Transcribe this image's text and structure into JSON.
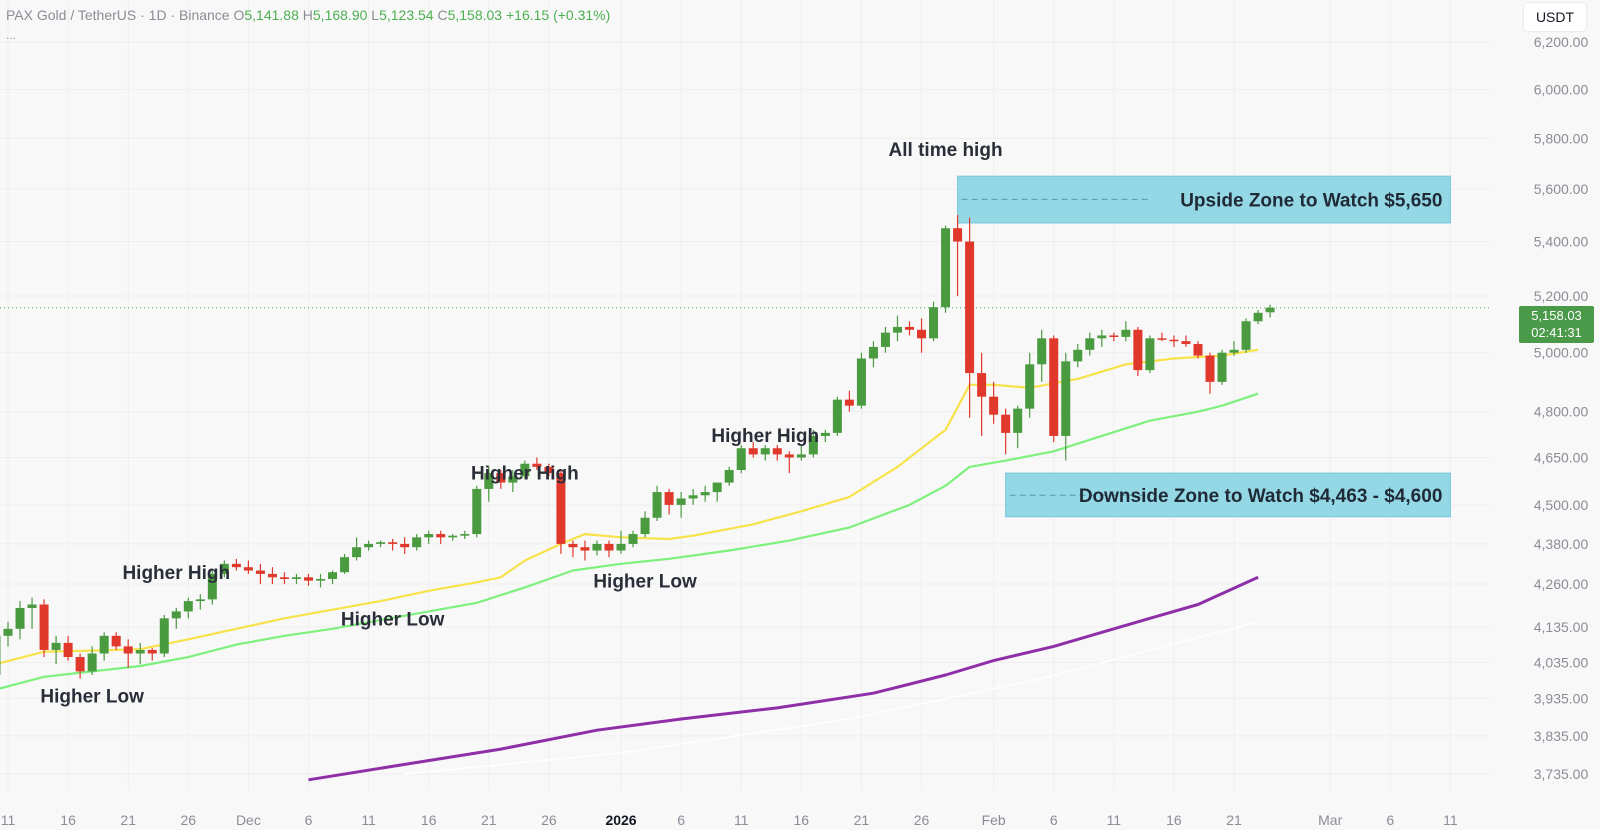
{
  "legend": {
    "symbol": "PAX Gold / TetherUS · 1D · Binance",
    "o_label": "O",
    "o_value": "5,141.88",
    "h_label": "H",
    "h_value": "5,168.90",
    "l_label": "L",
    "l_value": "5,123.54",
    "c_label": "C",
    "c_value": "5,158.03",
    "change": "+16.15 (+0.31%)",
    "more": "..."
  },
  "currency_button": "USDT",
  "last_price": {
    "price": "5,158.03",
    "countdown": "02:41:31"
  },
  "colors": {
    "up": "#4a9a3f",
    "down": "#e0382b",
    "ema_fast": "#f7e24a",
    "ema_mid": "#7ef07e",
    "ema_slow": "#8e2fa8",
    "zone_fill": "#8fd7e6",
    "zone_border": "#6cc4d6",
    "grid": "#eeeeee",
    "price_line": "#4caf50"
  },
  "chart_data": {
    "type": "candlestick",
    "y_scale": "log",
    "y_range": [
      3700,
      6300
    ],
    "x_range": [
      "2025-11-11",
      "2026-03-13"
    ],
    "y_ticks": [
      6200,
      6000,
      5800,
      5600,
      5400,
      5200,
      5000,
      4800,
      4650,
      4500,
      4380,
      4260,
      4135,
      4035,
      3935,
      3835,
      3735
    ],
    "y_tick_labels": [
      "6,200.00",
      "6,000.00",
      "5,800.00",
      "5,600.00",
      "5,400.00",
      "5,200.00",
      "5,000.00",
      "4,800.00",
      "4,650.00",
      "4,500.00",
      "4,380.00",
      "4,260.00",
      "4,135.00",
      "4,035.00",
      "3,935.00",
      "3,835.00",
      "3,735.00"
    ],
    "x_ticks": [
      {
        "date": "2025-11-11",
        "label": "11"
      },
      {
        "date": "2025-11-16",
        "label": "16"
      },
      {
        "date": "2025-11-21",
        "label": "21"
      },
      {
        "date": "2025-11-26",
        "label": "26"
      },
      {
        "date": "2025-12-01",
        "label": "Dec"
      },
      {
        "date": "2025-12-06",
        "label": "6"
      },
      {
        "date": "2025-12-11",
        "label": "11"
      },
      {
        "date": "2025-12-16",
        "label": "16"
      },
      {
        "date": "2025-12-21",
        "label": "21"
      },
      {
        "date": "2025-12-26",
        "label": "26"
      },
      {
        "date": "2026-01-01",
        "label": "2026",
        "bold": true
      },
      {
        "date": "2026-01-06",
        "label": "6"
      },
      {
        "date": "2026-01-11",
        "label": "11"
      },
      {
        "date": "2026-01-16",
        "label": "16"
      },
      {
        "date": "2026-01-21",
        "label": "21"
      },
      {
        "date": "2026-01-26",
        "label": "26"
      },
      {
        "date": "2026-02-01",
        "label": "Feb"
      },
      {
        "date": "2026-02-06",
        "label": "6"
      },
      {
        "date": "2026-02-11",
        "label": "11"
      },
      {
        "date": "2026-02-16",
        "label": "16"
      },
      {
        "date": "2026-02-21",
        "label": "21"
      },
      {
        "date": "2026-03-01",
        "label": "Mar"
      },
      {
        "date": "2026-03-06",
        "label": "6"
      },
      {
        "date": "2026-03-11",
        "label": "11"
      }
    ],
    "first_date": "2025-11-10",
    "candles": [
      [
        4000,
        4120,
        3990,
        4110
      ],
      [
        4110,
        4150,
        4080,
        4130
      ],
      [
        4130,
        4210,
        4100,
        4190
      ],
      [
        4190,
        4220,
        4130,
        4200
      ],
      [
        4200,
        4215,
        4050,
        4070
      ],
      [
        4070,
        4110,
        4030,
        4090
      ],
      [
        4090,
        4110,
        4040,
        4050
      ],
      [
        4050,
        4060,
        3990,
        4010
      ],
      [
        4010,
        4080,
        4000,
        4060
      ],
      [
        4060,
        4120,
        4040,
        4110
      ],
      [
        4110,
        4120,
        4070,
        4080
      ],
      [
        4080,
        4100,
        4020,
        4060
      ],
      [
        4060,
        4090,
        4030,
        4070
      ],
      [
        4070,
        4075,
        4040,
        4060
      ],
      [
        4060,
        4170,
        4050,
        4160
      ],
      [
        4160,
        4190,
        4130,
        4180
      ],
      [
        4180,
        4220,
        4160,
        4210
      ],
      [
        4210,
        4230,
        4185,
        4215
      ],
      [
        4215,
        4300,
        4200,
        4290
      ],
      [
        4290,
        4330,
        4280,
        4320
      ],
      [
        4320,
        4335,
        4300,
        4310
      ],
      [
        4310,
        4330,
        4290,
        4300
      ],
      [
        4300,
        4320,
        4260,
        4290
      ],
      [
        4290,
        4310,
        4260,
        4280
      ],
      [
        4280,
        4295,
        4260,
        4275
      ],
      [
        4275,
        4290,
        4260,
        4280
      ],
      [
        4280,
        4290,
        4255,
        4270
      ],
      [
        4270,
        4290,
        4250,
        4275
      ],
      [
        4275,
        4300,
        4260,
        4295
      ],
      [
        4295,
        4350,
        4290,
        4340
      ],
      [
        4340,
        4400,
        4330,
        4370
      ],
      [
        4370,
        4390,
        4360,
        4380
      ],
      [
        4380,
        4390,
        4370,
        4385
      ],
      [
        4385,
        4395,
        4360,
        4380
      ],
      [
        4380,
        4400,
        4350,
        4370
      ],
      [
        4370,
        4410,
        4360,
        4400
      ],
      [
        4400,
        4420,
        4380,
        4410
      ],
      [
        4410,
        4420,
        4380,
        4400
      ],
      [
        4400,
        4410,
        4390,
        4405
      ],
      [
        4405,
        4420,
        4395,
        4410
      ],
      [
        4410,
        4560,
        4400,
        4550
      ],
      [
        4550,
        4620,
        4510,
        4600
      ],
      [
        4600,
        4610,
        4550,
        4570
      ],
      [
        4570,
        4610,
        4540,
        4590
      ],
      [
        4590,
        4640,
        4580,
        4630
      ],
      [
        4630,
        4650,
        4610,
        4620
      ],
      [
        4620,
        4630,
        4590,
        4600
      ],
      [
        4600,
        4610,
        4350,
        4380
      ],
      [
        4380,
        4390,
        4340,
        4370
      ],
      [
        4370,
        4390,
        4330,
        4360
      ],
      [
        4360,
        4390,
        4345,
        4380
      ],
      [
        4380,
        4390,
        4340,
        4360
      ],
      [
        4360,
        4420,
        4350,
        4380
      ],
      [
        4380,
        4420,
        4370,
        4410
      ],
      [
        4410,
        4480,
        4400,
        4460
      ],
      [
        4460,
        4560,
        4450,
        4540
      ],
      [
        4540,
        4550,
        4470,
        4500
      ],
      [
        4500,
        4540,
        4460,
        4520
      ],
      [
        4520,
        4550,
        4500,
        4530
      ],
      [
        4530,
        4560,
        4510,
        4540
      ],
      [
        4540,
        4560,
        4510,
        4570
      ],
      [
        4570,
        4620,
        4560,
        4610
      ],
      [
        4610,
        4690,
        4600,
        4680
      ],
      [
        4680,
        4700,
        4650,
        4660
      ],
      [
        4660,
        4690,
        4640,
        4680
      ],
      [
        4680,
        4690,
        4640,
        4660
      ],
      [
        4660,
        4670,
        4600,
        4650
      ],
      [
        4650,
        4690,
        4640,
        4660
      ],
      [
        4660,
        4740,
        4650,
        4720
      ],
      [
        4720,
        4740,
        4700,
        4730
      ],
      [
        4730,
        4850,
        4720,
        4840
      ],
      [
        4840,
        4870,
        4800,
        4820
      ],
      [
        4820,
        5000,
        4810,
        4980
      ],
      [
        4980,
        5040,
        4950,
        5020
      ],
      [
        5020,
        5090,
        5000,
        5070
      ],
      [
        5070,
        5130,
        5040,
        5090
      ],
      [
        5090,
        5110,
        5060,
        5080
      ],
      [
        5080,
        5120,
        5000,
        5050
      ],
      [
        5050,
        5180,
        5040,
        5160
      ],
      [
        5160,
        5460,
        5140,
        5450
      ],
      [
        5450,
        5500,
        5200,
        5400
      ],
      [
        5400,
        5490,
        4780,
        4930
      ],
      [
        4930,
        5000,
        4720,
        4850
      ],
      [
        4850,
        4900,
        4760,
        4790
      ],
      [
        4790,
        4810,
        4660,
        4730
      ],
      [
        4730,
        4820,
        4680,
        4810
      ],
      [
        4810,
        5000,
        4780,
        4960
      ],
      [
        4960,
        5080,
        4900,
        5050
      ],
      [
        5050,
        5060,
        4700,
        4720
      ],
      [
        4720,
        5000,
        4640,
        4970
      ],
      [
        4970,
        5030,
        4950,
        5010
      ],
      [
        5010,
        5070,
        4990,
        5050
      ],
      [
        5050,
        5080,
        5020,
        5060
      ],
      [
        5060,
        5070,
        5040,
        5055
      ],
      [
        5055,
        5110,
        5040,
        5080
      ],
      [
        5080,
        5090,
        4920,
        4940
      ],
      [
        4940,
        5060,
        4930,
        5050
      ],
      [
        5050,
        5070,
        5040,
        5045
      ],
      [
        5045,
        5060,
        5020,
        5040
      ],
      [
        5040,
        5060,
        5020,
        5030
      ],
      [
        5030,
        5040,
        4980,
        4990
      ],
      [
        4990,
        5000,
        4860,
        4900
      ],
      [
        4900,
        5010,
        4890,
        5000
      ],
      [
        5000,
        5040,
        4990,
        5010
      ],
      [
        5010,
        5120,
        5000,
        5110
      ],
      [
        5110,
        5150,
        5100,
        5140
      ],
      [
        5141.88,
        5168.9,
        5123.54,
        5158.03
      ]
    ],
    "series": [
      {
        "id": "ema_fast",
        "color_key": "ema_fast",
        "points": [
          [
            "2025-11-10",
            4030
          ],
          [
            "2025-11-14",
            4065
          ],
          [
            "2025-11-18",
            4068
          ],
          [
            "2025-11-22",
            4072
          ],
          [
            "2025-11-26",
            4100
          ],
          [
            "2025-11-30",
            4130
          ],
          [
            "2025-12-04",
            4160
          ],
          [
            "2025-12-08",
            4185
          ],
          [
            "2025-12-12",
            4210
          ],
          [
            "2025-12-16",
            4240
          ],
          [
            "2025-12-20",
            4265
          ],
          [
            "2025-12-22",
            4280
          ],
          [
            "2025-12-24",
            4330
          ],
          [
            "2025-12-27",
            4380
          ],
          [
            "2025-12-29",
            4410
          ],
          [
            "2026-01-01",
            4400
          ],
          [
            "2026-01-05",
            4395
          ],
          [
            "2026-01-07",
            4405
          ],
          [
            "2026-01-12",
            4440
          ],
          [
            "2026-01-16",
            4480
          ],
          [
            "2026-01-20",
            4525
          ],
          [
            "2026-01-24",
            4620
          ],
          [
            "2026-01-28",
            4740
          ],
          [
            "2026-01-30",
            4890
          ],
          [
            "2026-02-01",
            4890
          ],
          [
            "2026-02-04",
            4880
          ],
          [
            "2026-02-08",
            4910
          ],
          [
            "2026-02-12",
            4960
          ],
          [
            "2026-02-16",
            4980
          ],
          [
            "2026-02-20",
            4990
          ],
          [
            "2026-02-23",
            5010
          ]
        ]
      },
      {
        "id": "ema_mid",
        "color_key": "ema_mid",
        "points": [
          [
            "2025-11-10",
            3960
          ],
          [
            "2025-11-14",
            3995
          ],
          [
            "2025-11-18",
            4010
          ],
          [
            "2025-11-22",
            4025
          ],
          [
            "2025-11-26",
            4050
          ],
          [
            "2025-11-30",
            4085
          ],
          [
            "2025-12-04",
            4110
          ],
          [
            "2025-12-08",
            4130
          ],
          [
            "2025-12-12",
            4155
          ],
          [
            "2025-12-16",
            4180
          ],
          [
            "2025-12-20",
            4205
          ],
          [
            "2025-12-24",
            4250
          ],
          [
            "2025-12-28",
            4300
          ],
          [
            "2026-01-01",
            4320
          ],
          [
            "2026-01-05",
            4335
          ],
          [
            "2026-01-10",
            4360
          ],
          [
            "2026-01-15",
            4390
          ],
          [
            "2026-01-20",
            4430
          ],
          [
            "2026-01-25",
            4500
          ],
          [
            "2026-01-28",
            4560
          ],
          [
            "2026-01-30",
            4620
          ],
          [
            "2026-02-02",
            4640
          ],
          [
            "2026-02-06",
            4670
          ],
          [
            "2026-02-10",
            4720
          ],
          [
            "2026-02-14",
            4770
          ],
          [
            "2026-02-18",
            4800
          ],
          [
            "2026-02-20",
            4820
          ],
          [
            "2026-02-23",
            4860
          ]
        ]
      },
      {
        "id": "ema_slow",
        "color_key": "ema_slow",
        "points": [
          [
            "2025-12-06",
            3720
          ],
          [
            "2025-12-14",
            3760
          ],
          [
            "2025-12-22",
            3800
          ],
          [
            "2025-12-30",
            3850
          ],
          [
            "2026-01-06",
            3880
          ],
          [
            "2026-01-14",
            3910
          ],
          [
            "2026-01-22",
            3950
          ],
          [
            "2026-01-28",
            4000
          ],
          [
            "2026-02-01",
            4040
          ],
          [
            "2026-02-06",
            4080
          ],
          [
            "2026-02-12",
            4140
          ],
          [
            "2026-02-18",
            4200
          ],
          [
            "2026-02-23",
            4280
          ]
        ]
      },
      {
        "id": "sma_faint",
        "color_key": "grid",
        "points": [
          [
            "2025-12-14",
            3735
          ],
          [
            "2026-01-01",
            3790
          ],
          [
            "2026-01-20",
            3880
          ],
          [
            "2026-02-05",
            3990
          ],
          [
            "2026-02-23",
            4150
          ]
        ]
      }
    ],
    "zones": [
      {
        "label": "Upside Zone to Watch $5,650",
        "y_low": 5470,
        "y_high": 5650,
        "x_start": "2026-01-29",
        "x_end": "2026-03-11",
        "dashed_y": 5560
      },
      {
        "label": "Downside Zone to Watch $4,463 - $4,600",
        "y_low": 4463,
        "y_high": 4600,
        "x_start": "2026-02-02",
        "x_end": "2026-03-11",
        "dashed_y": 4530
      }
    ],
    "annotations": [
      {
        "text": "Higher Low",
        "x": "2025-11-18",
        "y": 3925
      },
      {
        "text": "Higher High",
        "x": "2025-11-25",
        "y": 4275
      },
      {
        "text": "Higher Low",
        "x": "2025-12-13",
        "y": 4140
      },
      {
        "text": "Higher High",
        "x": "2025-12-24",
        "y": 4580
      },
      {
        "text": "Higher Low",
        "x": "2026-01-03",
        "y": 4250
      },
      {
        "text": "Higher High",
        "x": "2026-01-13",
        "y": 4700
      },
      {
        "text": "All time high",
        "x": "2026-01-28",
        "y": 5730
      }
    ]
  }
}
